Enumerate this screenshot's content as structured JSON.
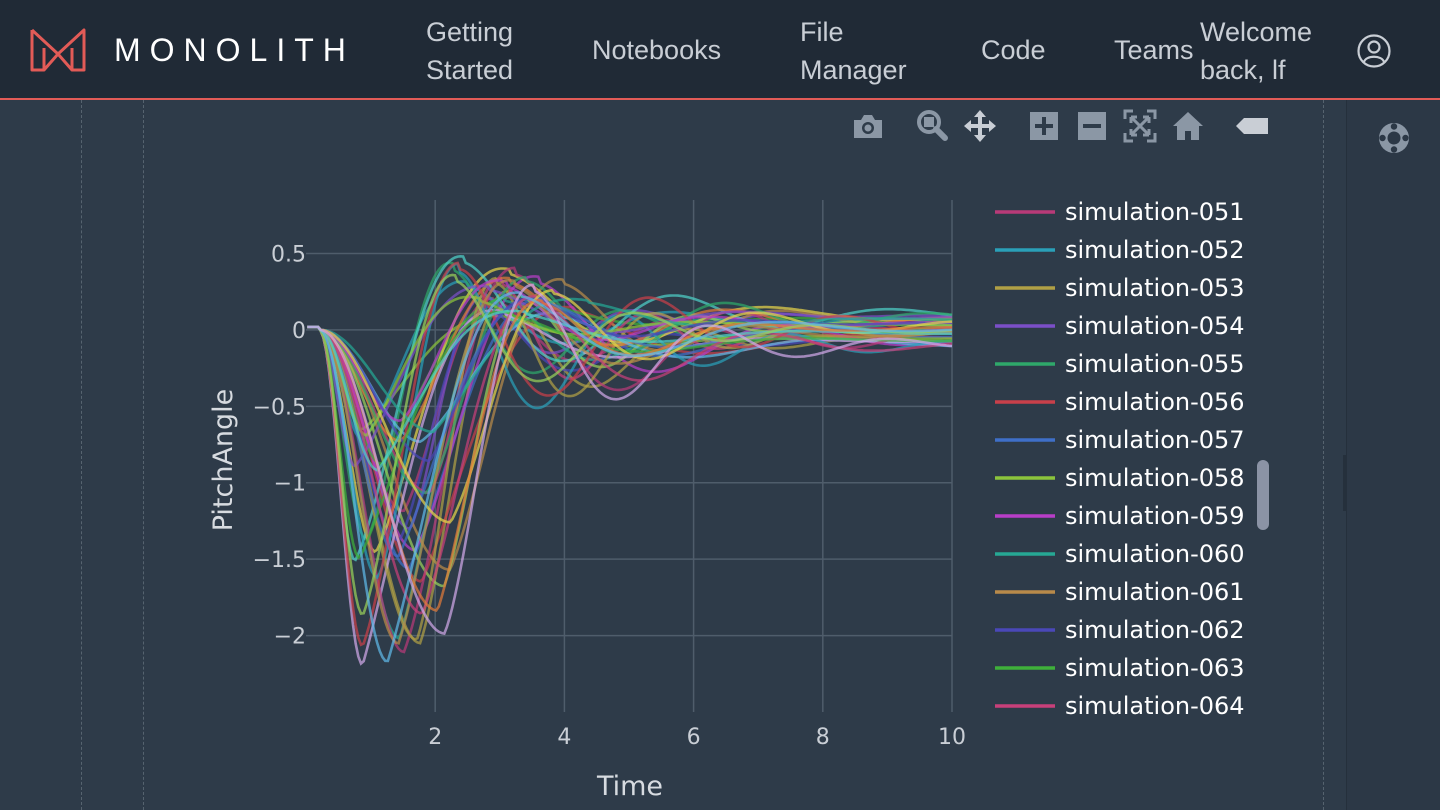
{
  "app": {
    "brand": "MONOLITH",
    "accent_color": "#e25b57"
  },
  "nav": {
    "getting_started": [
      "Getting",
      "Started"
    ],
    "notebooks": "Notebooks",
    "file_manager": [
      "File",
      "Manager"
    ],
    "code": "Code",
    "teams": "Teams",
    "welcome": [
      "Welcome",
      "back, lf"
    ]
  },
  "icons": {
    "user": "user-circle-icon",
    "help": "lifebuoy-icon",
    "modebar": [
      "camera-icon",
      "zoom-icon",
      "pan-icon",
      "zoom-in-icon",
      "zoom-out-icon",
      "autoscale-icon",
      "home-icon",
      "spike-lines-icon"
    ]
  },
  "chart_data": {
    "type": "line",
    "xlabel": "Time",
    "ylabel": "PitchAngle",
    "xlim": [
      0,
      10
    ],
    "ylim": [
      -2.5,
      0.85
    ],
    "xticks": [
      2,
      4,
      6,
      8,
      10
    ],
    "xtick_labels": [
      "2",
      "4",
      "6",
      "8",
      "10"
    ],
    "yticks": [
      0.5,
      0,
      -0.5,
      -1,
      -1.5,
      -2
    ],
    "ytick_labels": [
      "0.5",
      "0",
      "−0.5",
      "−1",
      "−1.5",
      "−2"
    ],
    "grid": true,
    "legend_position": "right",
    "legend": [
      {
        "name": "simulation-051",
        "color": "#b83a78"
      },
      {
        "name": "simulation-052",
        "color": "#2aa0b8"
      },
      {
        "name": "simulation-053",
        "color": "#b0a045"
      },
      {
        "name": "simulation-054",
        "color": "#7b4fc8"
      },
      {
        "name": "simulation-055",
        "color": "#2fa86a"
      },
      {
        "name": "simulation-056",
        "color": "#c8404a"
      },
      {
        "name": "simulation-057",
        "color": "#3f6fc8"
      },
      {
        "name": "simulation-058",
        "color": "#8cc43c"
      },
      {
        "name": "simulation-059",
        "color": "#b83ec8"
      },
      {
        "name": "simulation-060",
        "color": "#26a894"
      },
      {
        "name": "simulation-061",
        "color": "#b88a4a"
      },
      {
        "name": "simulation-062",
        "color": "#4a48b8"
      },
      {
        "name": "simulation-063",
        "color": "#3fb03a"
      },
      {
        "name": "simulation-064",
        "color": "#c8407a"
      }
    ],
    "series_shape": {
      "model": "damped oscillation",
      "count": 40,
      "minimum_range": [
        -2.27,
        -0.55
      ],
      "minimum_time_range": [
        0.75,
        2.3
      ],
      "peak_range": [
        0.2,
        0.75
      ],
      "settled_range": [
        -0.1,
        0.1
      ]
    }
  }
}
